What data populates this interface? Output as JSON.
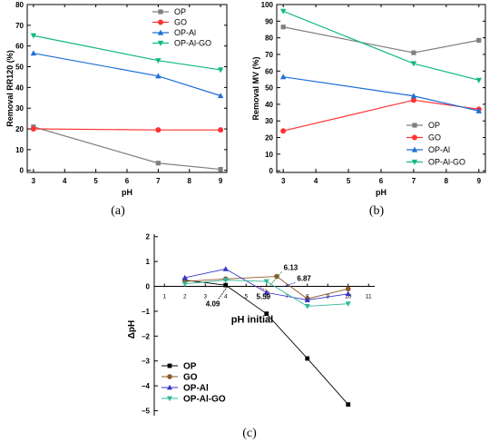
{
  "chart_data": [
    {
      "id": "a",
      "type": "line",
      "caption": "(a)",
      "title": "",
      "xlabel": "pH",
      "ylabel": "Removal RR120 (%)",
      "xlim": [
        2.8,
        9.2
      ],
      "ylim": [
        -1,
        80
      ],
      "xticks": [
        "3",
        "4",
        "5",
        "6",
        "7",
        "8",
        "9"
      ],
      "yticks": [
        "0",
        "10",
        "20",
        "30",
        "40",
        "50",
        "60",
        "70",
        "80"
      ],
      "x": [
        3,
        7,
        9
      ],
      "legend_position": "top-right",
      "series": [
        {
          "name": "OP",
          "color": "#808080",
          "marker": "square",
          "values": [
            21,
            3.5,
            0.5
          ]
        },
        {
          "name": "GO",
          "color": "#ff3333",
          "marker": "circle",
          "values": [
            20,
            19.5,
            19.5
          ]
        },
        {
          "name": "OP-Al",
          "color": "#1f6fd6",
          "marker": "triangle-up",
          "values": [
            56.5,
            45.5,
            36
          ]
        },
        {
          "name": "OP-Al-GO",
          "color": "#12b886",
          "marker": "triangle-down",
          "values": [
            65,
            53,
            48.5
          ]
        }
      ]
    },
    {
      "id": "b",
      "type": "line",
      "caption": "(b)",
      "title": "",
      "xlabel": "pH",
      "ylabel": "Removal MV (%)",
      "xlim": [
        2.8,
        9.2
      ],
      "ylim": [
        -1,
        100
      ],
      "xticks": [
        "3",
        "4",
        "5",
        "6",
        "7",
        "8",
        "9"
      ],
      "yticks": [
        "0",
        "10",
        "20",
        "30",
        "40",
        "50",
        "60",
        "70",
        "80",
        "90",
        "100"
      ],
      "x": [
        3,
        7,
        9
      ],
      "legend_position": "bottom-right",
      "series": [
        {
          "name": "OP",
          "color": "#808080",
          "marker": "square",
          "values": [
            86.5,
            71,
            78.5
          ]
        },
        {
          "name": "GO",
          "color": "#ff3333",
          "marker": "circle",
          "values": [
            24,
            42.5,
            37
          ]
        },
        {
          "name": "OP-Al",
          "color": "#1f6fd6",
          "marker": "triangle-up",
          "values": [
            56.5,
            45,
            36
          ]
        },
        {
          "name": "OP-Al-GO",
          "color": "#12b886",
          "marker": "triangle-down",
          "values": [
            96,
            64.5,
            54.5
          ]
        }
      ]
    },
    {
      "id": "c",
      "type": "line",
      "caption": "(c)",
      "title": "",
      "xlabel": "pH initial",
      "ylabel": "ΔpH",
      "xlim": [
        0.5,
        11.3
      ],
      "ylim": [
        -5.2,
        2.1
      ],
      "xticks": [
        "1",
        "2",
        "3",
        "4",
        "5",
        "6",
        "7",
        "8",
        "9",
        "10",
        "11"
      ],
      "yticks": [
        "2",
        "1",
        "0",
        "−1",
        "−2",
        "−3",
        "−4",
        "−5"
      ],
      "legend_position": "bottom-left",
      "series": [
        {
          "name": "OP",
          "color": "#000000",
          "marker": "square",
          "x": [
            2,
            4,
            6,
            8,
            10
          ],
          "values": [
            0.25,
            0.05,
            -1.1,
            -2.9,
            -4.75
          ]
        },
        {
          "name": "GO",
          "color": "#8b5a2b",
          "marker": "circle",
          "x": [
            2,
            4,
            6.5,
            8,
            10
          ],
          "values": [
            0.2,
            0.3,
            0.4,
            -0.5,
            -0.1
          ]
        },
        {
          "name": "OP-Al",
          "color": "#3333cc",
          "marker": "triangle-up",
          "x": [
            2,
            4,
            6,
            8,
            10
          ],
          "values": [
            0.35,
            0.7,
            -0.25,
            -0.55,
            -0.3
          ]
        },
        {
          "name": "OP-Al-GO",
          "color": "#2fb89a",
          "marker": "triangle-down",
          "x": [
            2,
            4,
            6,
            8,
            10
          ],
          "values": [
            0.1,
            0.25,
            0.2,
            -0.8,
            -0.7
          ]
        }
      ],
      "annotations": [
        {
          "text": "4.09",
          "x": 4.09,
          "y": 0,
          "color": "#000000"
        },
        {
          "text": "5.59",
          "x": 5.59,
          "y": 0,
          "color": "#b22222"
        },
        {
          "text": "6.13",
          "x": 6.13,
          "y": 0,
          "color": "#2e8b2e"
        },
        {
          "text": "6.87",
          "x": 6.87,
          "y": 0,
          "color": "#2222cc"
        }
      ]
    }
  ]
}
